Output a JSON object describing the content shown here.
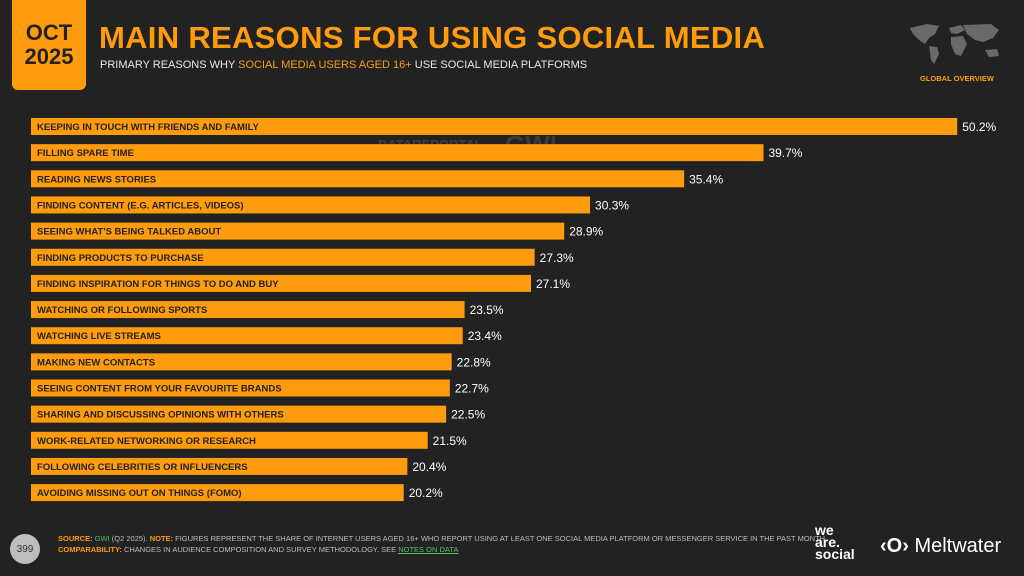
{
  "header": {
    "date_month": "OCT",
    "date_year": "2025",
    "title": "MAIN REASONS FOR USING SOCIAL MEDIA",
    "subtitle_pre": "PRIMARY REASONS WHY ",
    "subtitle_highlight": "SOCIAL MEDIA USERS AGED 16+",
    "subtitle_post": " USE SOCIAL MEDIA PLATFORMS",
    "region_label": "GLOBAL OVERVIEW"
  },
  "watermarks": {
    "left": "DATAREPORTAL",
    "right": "GWI."
  },
  "colors": {
    "background": "#222222",
    "accent": "#ff9c0d",
    "bar_label": "#222222",
    "value_label": "#ffffff"
  },
  "chart_data": {
    "type": "bar",
    "orientation": "horizontal",
    "categories": [
      "KEEPING IN TOUCH WITH FRIENDS AND FAMILY",
      "FILLING SPARE TIME",
      "READING NEWS STORIES",
      "FINDING CONTENT (E.G. ARTICLES, VIDEOS)",
      "SEEING WHAT'S BEING TALKED ABOUT",
      "FINDING PRODUCTS TO PURCHASE",
      "FINDING INSPIRATION FOR THINGS TO DO AND BUY",
      "WATCHING OR FOLLOWING SPORTS",
      "WATCHING LIVE STREAMS",
      "MAKING NEW CONTACTS",
      "SEEING CONTENT FROM YOUR FAVOURITE BRANDS",
      "SHARING AND DISCUSSING OPINIONS WITH OTHERS",
      "WORK-RELATED NETWORKING OR RESEARCH",
      "FOLLOWING CELEBRITIES OR INFLUENCERS",
      "AVOIDING MISSING OUT ON THINGS (FOMO)"
    ],
    "values": [
      50.2,
      39.7,
      35.4,
      30.3,
      28.9,
      27.3,
      27.1,
      23.5,
      23.4,
      22.8,
      22.7,
      22.5,
      21.5,
      20.4,
      20.2
    ],
    "value_labels": [
      "50.2%",
      "39.7%",
      "35.4%",
      "30.3%",
      "28.9%",
      "27.3%",
      "27.1%",
      "23.5%",
      "23.4%",
      "22.8%",
      "22.7%",
      "22.5%",
      "21.5%",
      "20.4%",
      "20.2%"
    ],
    "grid": false,
    "legend": "none"
  },
  "footer": {
    "page_number": "399",
    "source_label": "SOURCE:",
    "source_name": "GWI",
    "source_detail": " (Q2 2025). ",
    "note_label": "NOTE:",
    "note_text": " FIGURES REPRESENT THE SHARE OF INTERNET USERS AGED 16+ WHO REPORT USING AT LEAST ONE SOCIAL MEDIA PLATFORM OR MESSENGER SERVICE IN THE PAST MONTH.",
    "comparability_label": "COMPARABILITY:",
    "comparability_text": " CHANGES IN AUDIENCE COMPOSITION AND SURVEY METHODOLOGY. SEE ",
    "notes_link": "NOTES ON DATA",
    "logo_wearesocial": "we are. social",
    "logo_meltwater": "Meltwater"
  }
}
